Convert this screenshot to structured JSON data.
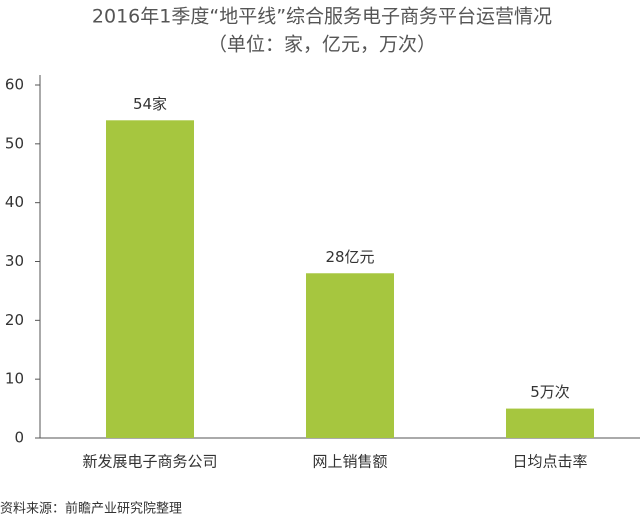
{
  "chart_data": {
    "type": "bar",
    "title": "2016年1季度“地平线”综合服务电子商务平台运营情况",
    "subtitle": "（单位：家，亿元，万次）",
    "categories": [
      "新发展电子商务公司",
      "网上销售额",
      "日均点击率"
    ],
    "values": [
      54,
      28,
      5
    ],
    "value_labels": [
      "54家",
      "28亿元",
      "5万次"
    ],
    "color": "#a6c63f",
    "ylim": [
      0,
      60
    ],
    "yticks": [
      0,
      10,
      20,
      30,
      40,
      50,
      60
    ],
    "source": "资料来源：前瞻产业研究院整理"
  }
}
